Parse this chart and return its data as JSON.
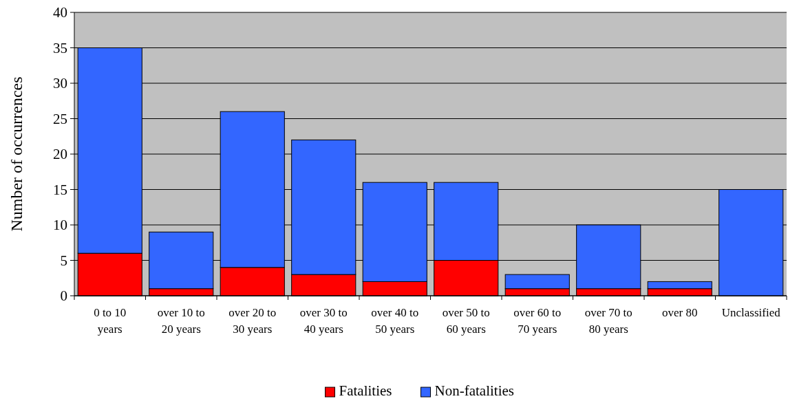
{
  "chart_data": {
    "type": "bar",
    "stacked": true,
    "ylabel": "Number of occurrences",
    "categories": [
      "0 to 10 years",
      "over 10 to 20 years",
      "over 20 to 30 years",
      "over 30 to 40 years",
      "over 40 to 50 years",
      "over 50 to 60 years",
      "over 60 to 70 years",
      "over 70 to 80 years",
      "over 80",
      "Unclassified"
    ],
    "series": [
      {
        "name": "Fatalities",
        "color": "#ff0000",
        "values": [
          6,
          1,
          4,
          3,
          2,
          5,
          1,
          1,
          1,
          0
        ]
      },
      {
        "name": "Non-fatalities",
        "color": "#3366ff",
        "values": [
          29,
          8,
          22,
          19,
          14,
          11,
          2,
          9,
          1,
          15
        ]
      }
    ],
    "ylim": [
      0,
      40
    ],
    "yticks": [
      0,
      5,
      10,
      15,
      20,
      25,
      30,
      35,
      40
    ],
    "grid": "y",
    "legend": "bottom"
  }
}
